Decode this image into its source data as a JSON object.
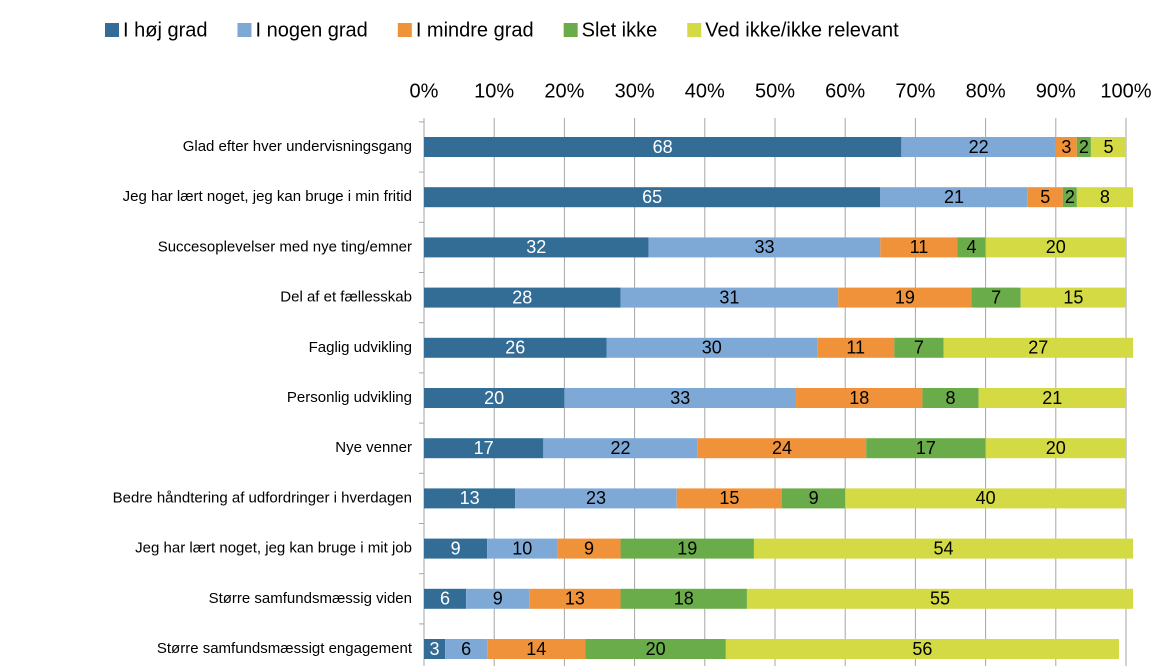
{
  "chart_data": {
    "type": "stacked_bar_horizontal",
    "categories": [
      "Glad efter hver undervisningsgang",
      "Jeg har lært noget, jeg kan bruge i min fritid",
      "Succesoplevelser med nye ting/emner",
      "Del af et fællesskab",
      "Faglig udvikling",
      "Personlig udvikling",
      "Nye venner",
      "Bedre håndtering af udfordringer i hverdagen",
      "Jeg har lært noget, jeg kan bruge i mit job",
      "Større samfundsmæssig viden",
      "Større samfundsmæssigt engagement"
    ],
    "series": [
      {
        "name": "I høj grad",
        "color": "#336d96",
        "values": [
          68,
          65,
          32,
          28,
          26,
          20,
          17,
          13,
          9,
          6,
          3
        ]
      },
      {
        "name": "I nogen grad",
        "color": "#7ea9d7",
        "values": [
          22,
          21,
          33,
          31,
          30,
          33,
          22,
          23,
          10,
          9,
          6
        ]
      },
      {
        "name": "I mindre grad",
        "color": "#f0923a",
        "values": [
          3,
          5,
          11,
          19,
          11,
          18,
          24,
          15,
          9,
          13,
          14
        ]
      },
      {
        "name": "Slet ikke",
        "color": "#6aab4a",
        "values": [
          2,
          2,
          4,
          7,
          7,
          8,
          17,
          9,
          19,
          18,
          20
        ]
      },
      {
        "name": "Ved ikke/ikke relevant",
        "color": "#d3da44",
        "values": [
          5,
          8,
          20,
          15,
          27,
          21,
          20,
          40,
          54,
          55,
          56
        ]
      }
    ],
    "xlim": [
      0,
      100
    ],
    "xticks": [
      {
        "value": 0,
        "label": "0%"
      },
      {
        "value": 10,
        "label": "10%"
      },
      {
        "value": 20,
        "label": "20%"
      },
      {
        "value": 30,
        "label": "30%"
      },
      {
        "value": 40,
        "label": "40%"
      },
      {
        "value": 50,
        "label": "50%"
      },
      {
        "value": 60,
        "label": "60%"
      },
      {
        "value": 70,
        "label": "70%"
      },
      {
        "value": 80,
        "label": "80%"
      },
      {
        "value": 90,
        "label": "90%"
      },
      {
        "value": 100,
        "label": "100%"
      }
    ],
    "grid": true,
    "legend": "top"
  }
}
